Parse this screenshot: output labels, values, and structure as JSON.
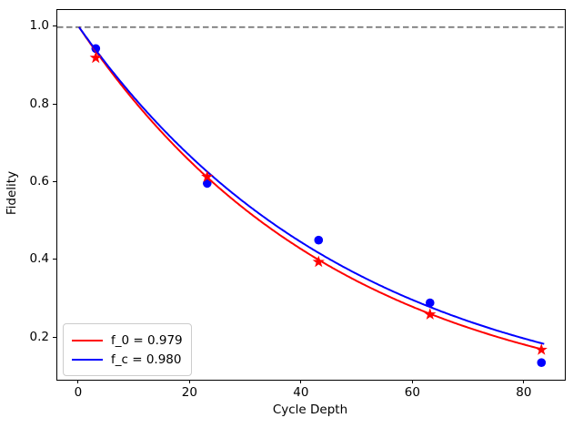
{
  "chart_data": {
    "type": "line",
    "title": "",
    "xlabel": "Cycle Depth",
    "ylabel": "Fidelity",
    "xlim": [
      -3.9,
      87.2
    ],
    "ylim": [
      0.093,
      1.044
    ],
    "grid": false,
    "legend_position": "lower left",
    "x_axis": {
      "label": "Cycle Depth",
      "ticks": [
        {
          "value": 0,
          "label": "0"
        },
        {
          "value": 20,
          "label": "20"
        },
        {
          "value": 40,
          "label": "40"
        },
        {
          "value": 60,
          "label": "60"
        },
        {
          "value": 80,
          "label": "80"
        }
      ]
    },
    "y_axis": {
      "label": "Fidelity",
      "ticks": [
        {
          "value": 1.0,
          "label": "1.0"
        },
        {
          "value": 0.8,
          "label": "0.8"
        },
        {
          "value": 0.6,
          "label": "0.6"
        },
        {
          "value": 0.4,
          "label": "0.4"
        },
        {
          "value": 0.2,
          "label": "0.2"
        }
      ]
    },
    "reference_line": {
      "y": 1.0,
      "style": "dashed",
      "color": "#7f7f7f",
      "width": 1.8
    },
    "curves": [
      {
        "name": "f0-fit-curve",
        "legend_label": "f_0 = 0.979",
        "color": "#ff0000",
        "amplitude": 1.0,
        "decay": 0.979,
        "x_start": 0,
        "x_end": 83.5,
        "line_width": 2
      },
      {
        "name": "fc-fit-curve",
        "legend_label": "f_c = 0.980",
        "color": "#0000ff",
        "amplitude": 1.0,
        "decay": 0.98,
        "x_start": 0,
        "x_end": 83.5,
        "line_width": 2
      }
    ],
    "scatter": [
      {
        "name": "circle-data-points",
        "marker": "circle",
        "color": "#0000ff",
        "x": [
          3,
          23,
          43,
          63,
          83
        ],
        "y": [
          0.945,
          0.598,
          0.452,
          0.291,
          0.137
        ]
      },
      {
        "name": "star-data-points",
        "marker": "star",
        "color": "#ff0000",
        "x": [
          3,
          23,
          43,
          63,
          83
        ],
        "y": [
          0.921,
          0.615,
          0.396,
          0.261,
          0.17
        ]
      }
    ],
    "colors": {
      "background": "#ffffff",
      "frame": "#000000",
      "text": "#000000"
    }
  }
}
